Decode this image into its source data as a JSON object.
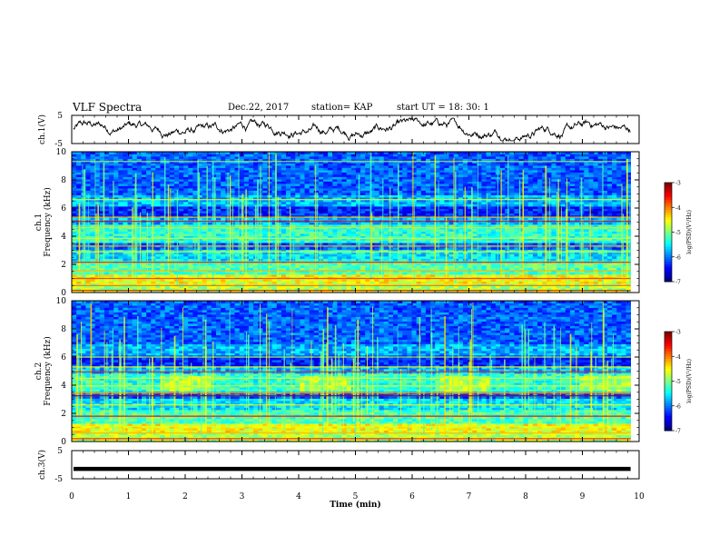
{
  "header": {
    "title": "VLF Spectra",
    "date": "Dec.22, 2017",
    "station": "station= KAP",
    "start": "start  UT =   18: 30: 1"
  },
  "chart_data": [
    {
      "type": "line",
      "panel": "ch1-waveform",
      "ylabel": "ch.1(V)",
      "ylim": [
        -5,
        5
      ],
      "yticks": [
        "5",
        "-5"
      ],
      "xlim": [
        0,
        10
      ]
    },
    {
      "type": "heatmap",
      "panel": "ch1-spectrogram",
      "ylabel_top": "ch.1",
      "ylabel": "Frequency (kHz)",
      "ylim": [
        0,
        10
      ],
      "yticks": [
        "0",
        "2",
        "4",
        "6",
        "8",
        "10"
      ],
      "xlim": [
        0,
        9.85
      ],
      "colorbar": {
        "label": "log(PSD)(V²/Hz)",
        "range": [
          -7,
          -3
        ],
        "ticks": [
          "-3",
          "-4",
          "-5",
          "-6",
          "-7"
        ],
        "colormap": "jet"
      }
    },
    {
      "type": "heatmap",
      "panel": "ch2-spectrogram",
      "ylabel_top": "ch.2",
      "ylabel": "Frequency (kHz)",
      "ylim": [
        0,
        10
      ],
      "yticks": [
        "0",
        "2",
        "4",
        "6",
        "8",
        "10"
      ],
      "xlim": [
        0,
        9.85
      ],
      "colorbar": {
        "label": "log(PSD)(V²/Hz)",
        "range": [
          -7,
          -3
        ],
        "ticks": [
          "-3",
          "-4",
          "-5",
          "-6",
          "-7"
        ],
        "colormap": "jet"
      }
    },
    {
      "type": "line",
      "panel": "ch3-waveform",
      "ylabel": "ch.3(V)",
      "ylim": [
        -5,
        5
      ],
      "yticks": [
        "5",
        "-5"
      ],
      "value": -1.5,
      "xlabel": "Time (min)",
      "xticks": [
        "0",
        "1",
        "2",
        "3",
        "4",
        "5",
        "6",
        "7",
        "8",
        "9",
        "10"
      ],
      "xlim": [
        0,
        10
      ]
    }
  ]
}
